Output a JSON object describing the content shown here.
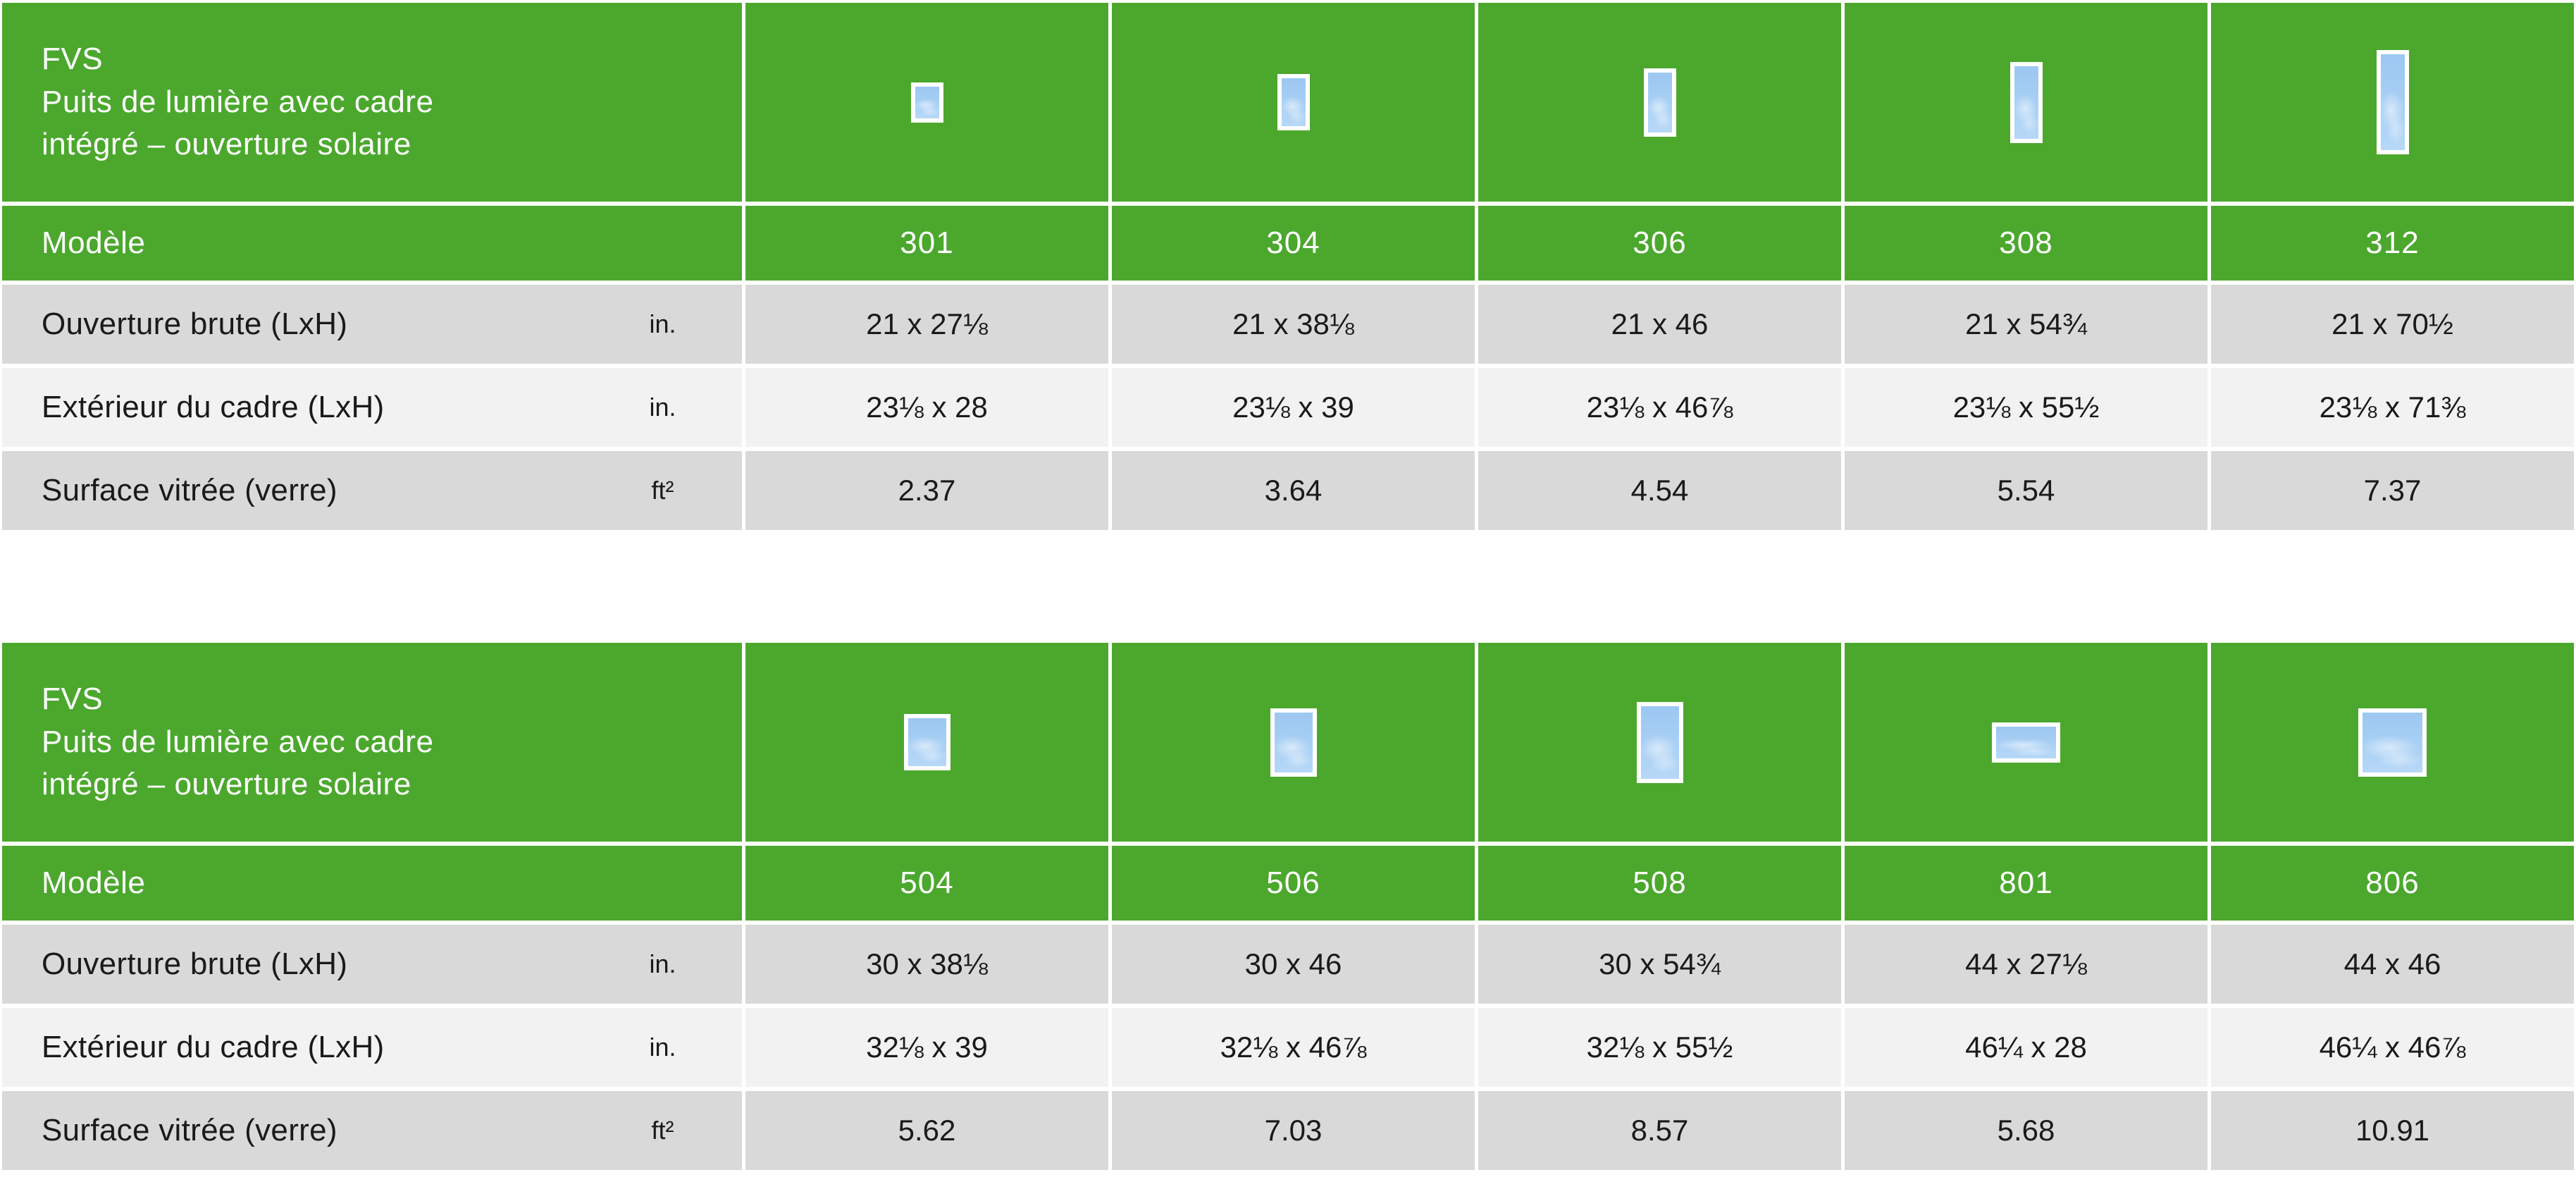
{
  "colors": {
    "green": "#4BA82D",
    "row_dark": "#D9D9D9",
    "row_light": "#F2F2F2",
    "sky_top": "#9CC7F2",
    "sky_bottom": "#B7D8F7",
    "text_dark": "#1A1A1A",
    "text_white": "#FFFFFF"
  },
  "rows": {
    "model_label": "Modèle",
    "gross_opening_label": "Ouverture brute (LxH)",
    "gross_opening_unit": "in.",
    "frame_exterior_label": "Extérieur du cadre (LxH)",
    "frame_exterior_unit": "in.",
    "glass_area_label": "Surface vitrée (verre)",
    "glass_area_unit": "ft²"
  },
  "tables": [
    {
      "title": "FVS\nPuits de lumière avec cadre\nintégré – ouverture solaire",
      "columns": [
        {
          "model": "301",
          "icon": {
            "w": 46,
            "h": 57
          },
          "gross_opening": "21 x 27⅛",
          "frame_exterior": "23⅛ x 28",
          "glass_area": "2.37"
        },
        {
          "model": "304",
          "icon": {
            "w": 46,
            "h": 80
          },
          "gross_opening": "21 x 38⅛",
          "frame_exterior": "23⅛ x 39",
          "glass_area": "3.64"
        },
        {
          "model": "306",
          "icon": {
            "w": 46,
            "h": 97
          },
          "gross_opening": "21 x 46",
          "frame_exterior": "23⅛ x 46⅞",
          "glass_area": "4.54"
        },
        {
          "model": "308",
          "icon": {
            "w": 46,
            "h": 115
          },
          "gross_opening": "21 x 54¾",
          "frame_exterior": "23⅛ x 55½",
          "glass_area": "5.54"
        },
        {
          "model": "312",
          "icon": {
            "w": 46,
            "h": 148
          },
          "gross_opening": "21 x 70½",
          "frame_exterior": "23⅛ x 71⅜",
          "glass_area": "7.37"
        }
      ]
    },
    {
      "title": "FVS\nPuits de lumière avec cadre\nintégré – ouverture solaire",
      "columns": [
        {
          "model": "504",
          "icon": {
            "w": 66,
            "h": 80
          },
          "gross_opening": "30 x 38⅛",
          "frame_exterior": "32⅛ x 39",
          "glass_area": "5.62"
        },
        {
          "model": "506",
          "icon": {
            "w": 66,
            "h": 97
          },
          "gross_opening": "30 x 46",
          "frame_exterior": "32⅛ x 46⅞",
          "glass_area": "7.03"
        },
        {
          "model": "508",
          "icon": {
            "w": 66,
            "h": 115
          },
          "gross_opening": "30 x 54¾",
          "frame_exterior": "32⅛ x 55½",
          "glass_area": "8.57"
        },
        {
          "model": "801",
          "icon": {
            "w": 97,
            "h": 57
          },
          "gross_opening": "44 x 27⅛",
          "frame_exterior": "46¼ x 28",
          "glass_area": "5.68"
        },
        {
          "model": "806",
          "icon": {
            "w": 97,
            "h": 97
          },
          "gross_opening": "44 x 46",
          "frame_exterior": "46¼ x 46⅞",
          "glass_area": "10.91"
        }
      ]
    }
  ]
}
